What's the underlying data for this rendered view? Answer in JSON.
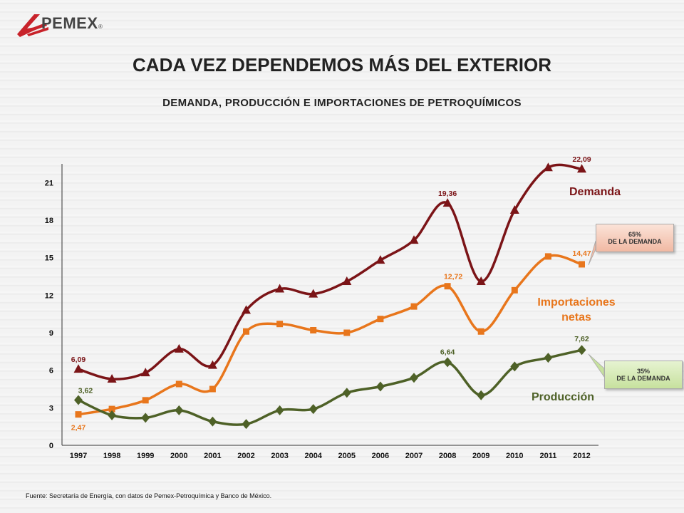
{
  "header": {
    "brand": "PEMEX",
    "brand_reg": "®",
    "title": "CADA VEZ DEPENDEMOS MÁS DEL EXTERIOR",
    "subtitle": "DEMANDA, PRODUCCIÓN E IMPORTACIONES DE PETROQUÍMICOS"
  },
  "footer": {
    "source": "Fuente: Secretaría de Energía, con datos de Pemex-Petroquímica y Banco de México."
  },
  "callouts": [
    {
      "pct": "65%",
      "text": "DE LA DEMANDA",
      "color": "#f4c6b2"
    },
    {
      "pct": "35%",
      "text": "DE LA DEMANDA",
      "color": "#d6eab5"
    }
  ],
  "chart_data": {
    "type": "line",
    "categories": [
      "1997",
      "1998",
      "1999",
      "2000",
      "2001",
      "2002",
      "2003",
      "2004",
      "2005",
      "2006",
      "2007",
      "2008",
      "2009",
      "2010",
      "2011",
      "2012"
    ],
    "ylim": [
      0,
      22.5
    ],
    "yticks": [
      "0",
      "3",
      "6",
      "9",
      "12",
      "15",
      "18",
      "21"
    ],
    "series": [
      {
        "name": "Demanda",
        "color": "#7b1417",
        "marker": "triangle",
        "values": [
          6.09,
          5.3,
          5.8,
          7.7,
          6.4,
          10.8,
          12.5,
          12.1,
          13.1,
          14.8,
          16.4,
          19.36,
          13.1,
          18.8,
          22.2,
          22.09
        ],
        "labels": [
          {
            "i": 0,
            "text": "6,09"
          },
          {
            "i": 11,
            "text": "19,36"
          },
          {
            "i": 15,
            "text": "22,09"
          }
        ]
      },
      {
        "name": "Importaciones netas",
        "name_lines": [
          "Importaciones",
          "netas"
        ],
        "color": "#e8761c",
        "marker": "square",
        "values": [
          2.47,
          2.9,
          3.6,
          4.9,
          4.5,
          9.1,
          9.7,
          9.2,
          9.0,
          10.1,
          11.1,
          12.72,
          9.1,
          12.4,
          15.1,
          14.47
        ],
        "labels": [
          {
            "i": 0,
            "text": "2,47"
          },
          {
            "i": 11,
            "text": "12,72"
          },
          {
            "i": 15,
            "text": "14,47"
          }
        ]
      },
      {
        "name": "Producción",
        "color": "#4e6127",
        "marker": "diamond",
        "values": [
          3.62,
          2.4,
          2.2,
          2.8,
          1.9,
          1.7,
          2.8,
          2.9,
          4.2,
          4.7,
          5.4,
          6.64,
          4.0,
          6.3,
          7.0,
          7.62
        ],
        "labels": [
          {
            "i": 0,
            "text": "3,62"
          },
          {
            "i": 11,
            "text": "6,64"
          },
          {
            "i": 15,
            "text": "7,62"
          }
        ]
      }
    ],
    "grid": false,
    "legend": "inline labels at right"
  }
}
